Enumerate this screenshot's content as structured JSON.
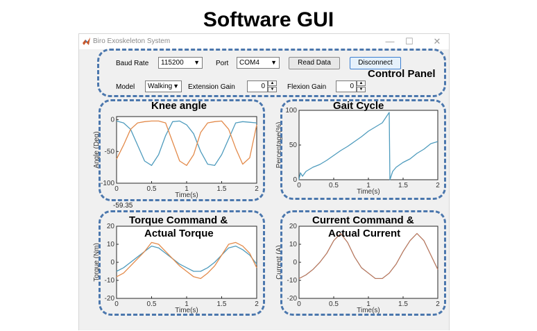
{
  "slide_title": "Software GUI",
  "window": {
    "title": "Biro Exoskeleton System",
    "icon": "matlab-icon",
    "controls": [
      "minimize-icon",
      "maximize-icon",
      "close-icon"
    ]
  },
  "control_panel": {
    "annotation": "Control Panel",
    "baud_rate_label": "Baud Rate",
    "baud_rate_value": "115200",
    "port_label": "Port",
    "port_value": "COM4",
    "read_data_label": "Read Data",
    "disconnect_label": "Disconnect",
    "model_label": "Model",
    "model_value": "Walking",
    "extension_gain_label": "Extension Gain",
    "extension_gain_value": "0",
    "flexion_gain_label": "Flexion Gain",
    "flexion_gain_value": "0"
  },
  "annotations": {
    "knee": "Knee angle",
    "gait": "Gait Cycle",
    "torque_line1": "Torque Command &",
    "torque_line2": "Actual Torque",
    "current_line1": "Current Command &",
    "current_line2": "Actual Current"
  },
  "readout": "-59.35",
  "colors": {
    "series1": "#4e9bbd",
    "series2": "#e38a4a",
    "frame": "#4b77ad"
  },
  "chart_data": [
    {
      "id": "knee",
      "type": "line",
      "xlabel": "Time(s)",
      "ylabel": "Angle (Deg)",
      "xlim": [
        0,
        2
      ],
      "ylim": [
        -100,
        5
      ],
      "xticks": [
        "0",
        "0.5",
        "1",
        "1.5",
        "2"
      ],
      "xtick_values": [
        0,
        0.5,
        1,
        1.5,
        2
      ],
      "yticks": [
        "0",
        "-50",
        "-100"
      ],
      "ytick_values": [
        0,
        -50,
        -100
      ],
      "series": [
        {
          "x": [
            0,
            0.1,
            0.2,
            0.3,
            0.4,
            0.5,
            0.6,
            0.7,
            0.8,
            0.9,
            1.0,
            1.1,
            1.2,
            1.3,
            1.4,
            1.5,
            1.6,
            1.7,
            1.8,
            1.9,
            2.0
          ],
          "y": [
            -2,
            -5,
            -15,
            -40,
            -65,
            -72,
            -55,
            -25,
            -3,
            -2,
            -8,
            -22,
            -50,
            -70,
            -72,
            -55,
            -30,
            -5,
            -3,
            -4,
            -5
          ]
        },
        {
          "x": [
            0,
            0.1,
            0.2,
            0.3,
            0.4,
            0.5,
            0.6,
            0.7,
            0.8,
            0.9,
            1.0,
            1.1,
            1.2,
            1.3,
            1.4,
            1.5,
            1.6,
            1.7,
            1.8,
            1.9,
            2.0
          ],
          "y": [
            -62,
            -40,
            -15,
            -5,
            -3,
            -2,
            -2,
            -5,
            -35,
            -65,
            -72,
            -55,
            -20,
            -5,
            -3,
            -2,
            -15,
            -45,
            -70,
            -60,
            -8
          ]
        }
      ]
    },
    {
      "id": "gait",
      "type": "line",
      "xlabel": "Time(s)",
      "ylabel": "Percentage(%)",
      "xlim": [
        0,
        2
      ],
      "ylim": [
        0,
        100
      ],
      "xticks": [
        "0",
        "0.5",
        "1",
        "1.5",
        "2"
      ],
      "xtick_values": [
        0,
        0.5,
        1,
        1.5,
        2
      ],
      "yticks": [
        "100",
        "50",
        "0"
      ],
      "ytick_values": [
        100,
        50,
        0
      ],
      "series": [
        {
          "x": [
            0,
            0.02,
            0.05,
            0.1,
            0.2,
            0.3,
            0.4,
            0.5,
            0.6,
            0.7,
            0.8,
            0.9,
            1.0,
            1.1,
            1.2,
            1.3,
            1.31,
            1.35,
            1.4,
            1.5,
            1.6,
            1.7,
            1.8,
            1.9,
            2.0
          ],
          "y": [
            0,
            10,
            5,
            12,
            18,
            22,
            28,
            35,
            42,
            48,
            55,
            62,
            70,
            76,
            82,
            97,
            0,
            12,
            18,
            25,
            30,
            38,
            44,
            52,
            55
          ]
        }
      ]
    },
    {
      "id": "torque",
      "type": "line",
      "xlabel": "Time(s)",
      "ylabel": "Torque (Nm)",
      "xlim": [
        0,
        2
      ],
      "ylim": [
        -20,
        20
      ],
      "xticks": [
        "0",
        "0.5",
        "1",
        "1.5",
        "2"
      ],
      "xtick_values": [
        0,
        0.5,
        1,
        1.5,
        2
      ],
      "yticks": [
        "20",
        "10",
        "0",
        "-10",
        "-20"
      ],
      "ytick_values": [
        20,
        10,
        0,
        -10,
        -20
      ],
      "series": [
        {
          "x": [
            0,
            0.1,
            0.2,
            0.3,
            0.4,
            0.5,
            0.6,
            0.7,
            0.8,
            0.9,
            1.0,
            1.1,
            1.2,
            1.3,
            1.4,
            1.5,
            1.6,
            1.7,
            1.8,
            1.9,
            2.0
          ],
          "y": [
            -5,
            -3,
            0,
            3,
            6,
            9,
            8,
            5,
            2,
            -1,
            -3,
            -5,
            -5,
            -3,
            0,
            4,
            8,
            9,
            7,
            4,
            -1
          ]
        },
        {
          "x": [
            0,
            0.1,
            0.2,
            0.3,
            0.4,
            0.5,
            0.6,
            0.7,
            0.8,
            0.9,
            1.0,
            1.1,
            1.2,
            1.3,
            1.4,
            1.5,
            1.6,
            1.7,
            1.8,
            1.9,
            2.0
          ],
          "y": [
            -8,
            -6,
            -2,
            2,
            6,
            11,
            10,
            6,
            2,
            -2,
            -5,
            -8,
            -9,
            -6,
            -2,
            4,
            10,
            11,
            9,
            5,
            -3
          ]
        }
      ]
    },
    {
      "id": "current",
      "type": "line",
      "xlabel": "Time(s)",
      "ylabel": "Current (A)",
      "xlim": [
        0,
        2
      ],
      "ylim": [
        -20,
        20
      ],
      "xticks": [
        "0",
        "0.5",
        "1",
        "1.5",
        "2"
      ],
      "xtick_values": [
        0,
        0.5,
        1,
        1.5,
        2
      ],
      "yticks": [
        "20",
        "10",
        "0",
        "-10",
        "-20"
      ],
      "ytick_values": [
        20,
        10,
        0,
        -10,
        -20
      ],
      "series": [
        {
          "x": [
            0,
            0.1,
            0.2,
            0.3,
            0.4,
            0.5,
            0.6,
            0.7,
            0.8,
            0.9,
            1.0,
            1.1,
            1.2,
            1.3,
            1.4,
            1.5,
            1.6,
            1.7,
            1.8,
            1.9,
            2.0
          ],
          "y": [
            -9,
            -7,
            -4,
            0,
            5,
            12,
            16,
            11,
            3,
            -3,
            -6,
            -9,
            -9,
            -6,
            -1,
            6,
            12,
            16,
            12,
            4,
            -4
          ]
        },
        {
          "x": [
            0,
            0.1,
            0.2,
            0.3,
            0.4,
            0.5,
            0.6,
            0.7,
            0.8,
            0.9,
            1.0,
            1.1,
            1.2,
            1.3,
            1.4,
            1.5,
            1.6,
            1.7,
            1.8,
            1.9,
            2.0
          ],
          "y": [
            -9,
            -7,
            -4,
            0,
            5,
            12,
            16,
            11,
            3,
            -3,
            -6,
            -9,
            -9,
            -6,
            -1,
            6,
            12,
            16,
            12,
            4,
            -4
          ]
        }
      ]
    }
  ]
}
